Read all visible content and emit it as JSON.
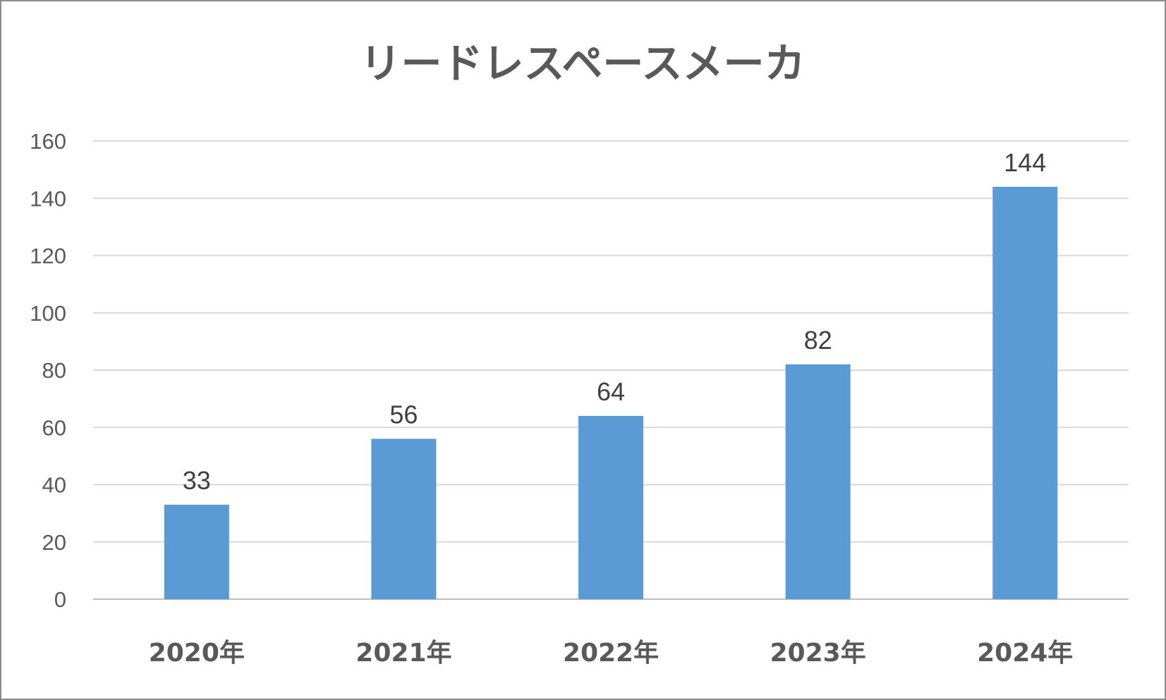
{
  "chart_data": {
    "type": "bar",
    "title": "リードレスペースメーカ",
    "categories": [
      "2020年",
      "2021年",
      "2022年",
      "2023年",
      "2024年"
    ],
    "values": [
      33,
      56,
      64,
      82,
      144
    ],
    "ylim": [
      0,
      160
    ],
    "yticks": [
      0,
      20,
      40,
      60,
      80,
      100,
      120,
      140,
      160
    ],
    "xlabel": "",
    "ylabel": "",
    "grid": true,
    "legend": "none",
    "bar_color": "#5b9bd5",
    "data_labels": true
  }
}
